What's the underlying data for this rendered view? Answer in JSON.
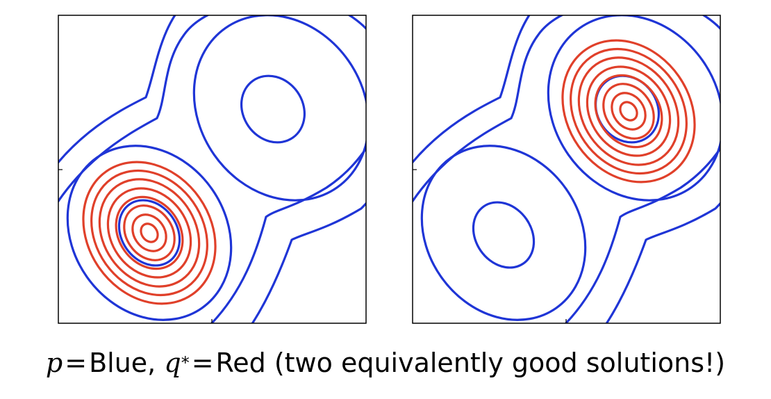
{
  "panels": [
    {
      "id": "left",
      "q_component": "lower-left",
      "description": "q* fits the lower-left mode of p"
    },
    {
      "id": "right",
      "q_component": "upper-right",
      "description": "q* fits the upper-right mode of p"
    }
  ],
  "colors": {
    "p": "#1f35d6",
    "q": "#e0402a",
    "frame": "#000000"
  },
  "caption": {
    "p_symbol": "p",
    "eq1": "=",
    "p_color": "Blue,",
    "q_symbol": "q",
    "q_star": "*",
    "eq2": "=",
    "q_color": "Red",
    "note": "(two equivalently good solutions!)"
  }
}
